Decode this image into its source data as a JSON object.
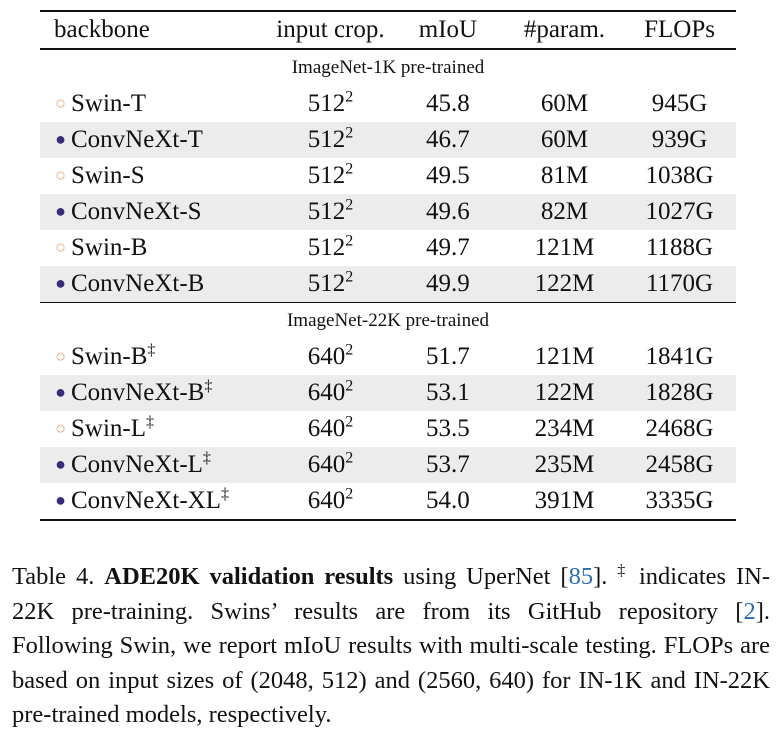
{
  "table": {
    "headers": [
      "backbone",
      "input crop.",
      "mIoU",
      "#param.",
      "FLOPs"
    ],
    "groups": [
      {
        "label": "ImageNet-1K pre-trained",
        "rows": [
          {
            "marker": "○",
            "name": "Swin-T",
            "dagger": "",
            "crop": "512",
            "crop_exp": "2",
            "miou": "45.8",
            "miou_bold": false,
            "params": "60M",
            "flops": "945G"
          },
          {
            "marker": "●",
            "name": "ConvNeXt-T",
            "dagger": "",
            "crop": "512",
            "crop_exp": "2",
            "miou": "46.7",
            "miou_bold": true,
            "params": "60M",
            "flops": "939G"
          },
          {
            "marker": "○",
            "name": "Swin-S",
            "dagger": "",
            "crop": "512",
            "crop_exp": "2",
            "miou": "49.5",
            "miou_bold": false,
            "params": "81M",
            "flops": "1038G"
          },
          {
            "marker": "●",
            "name": "ConvNeXt-S",
            "dagger": "",
            "crop": "512",
            "crop_exp": "2",
            "miou": "49.6",
            "miou_bold": true,
            "params": "82M",
            "flops": "1027G"
          },
          {
            "marker": "○",
            "name": "Swin-B",
            "dagger": "",
            "crop": "512",
            "crop_exp": "2",
            "miou": "49.7",
            "miou_bold": false,
            "params": "121M",
            "flops": "1188G"
          },
          {
            "marker": "●",
            "name": "ConvNeXt-B",
            "dagger": "",
            "crop": "512",
            "crop_exp": "2",
            "miou": "49.9",
            "miou_bold": true,
            "params": "122M",
            "flops": "1170G"
          }
        ]
      },
      {
        "label": "ImageNet-22K pre-trained",
        "rows": [
          {
            "marker": "○",
            "name": "Swin-B",
            "dagger": "‡",
            "crop": "640",
            "crop_exp": "2",
            "miou": "51.7",
            "miou_bold": false,
            "params": "121M",
            "flops": "1841G"
          },
          {
            "marker": "●",
            "name": "ConvNeXt-B",
            "dagger": "‡",
            "crop": "640",
            "crop_exp": "2",
            "miou": "53.1",
            "miou_bold": true,
            "params": "122M",
            "flops": "1828G"
          },
          {
            "marker": "○",
            "name": "Swin-L",
            "dagger": "‡",
            "crop": "640",
            "crop_exp": "2",
            "miou": "53.5",
            "miou_bold": false,
            "params": "234M",
            "flops": "2468G"
          },
          {
            "marker": "●",
            "name": "ConvNeXt-L",
            "dagger": "‡",
            "crop": "640",
            "crop_exp": "2",
            "miou": "53.7",
            "miou_bold": true,
            "params": "235M",
            "flops": "2458G"
          },
          {
            "marker": "●",
            "name": "ConvNeXt-XL",
            "dagger": "‡",
            "crop": "640",
            "crop_exp": "2",
            "miou": "54.0",
            "miou_bold": true,
            "params": "391M",
            "flops": "3335G"
          }
        ]
      }
    ]
  },
  "caption": {
    "label": "Table 4.",
    "bold_title": "ADE20K validation results",
    "t1": " using UperNet [",
    "ref1": "85",
    "t2": "]. ",
    "dagger": "‡",
    "t3": " indicates IN-22K pre-training. Swins’ results are from its GitHub repository [",
    "ref2": "2",
    "t4": "]. Following Swin, we report mIoU results with multi-scale testing. FLOPs are based on input sizes of (2048, 512) and (2560, 640) for IN-1K and IN-22K pre-trained models, respectively."
  },
  "colors": {
    "open_marker": "#e8a070",
    "filled_marker": "#3b2a7a",
    "shade_row": "#ececec",
    "citation": "#2a6db0"
  }
}
